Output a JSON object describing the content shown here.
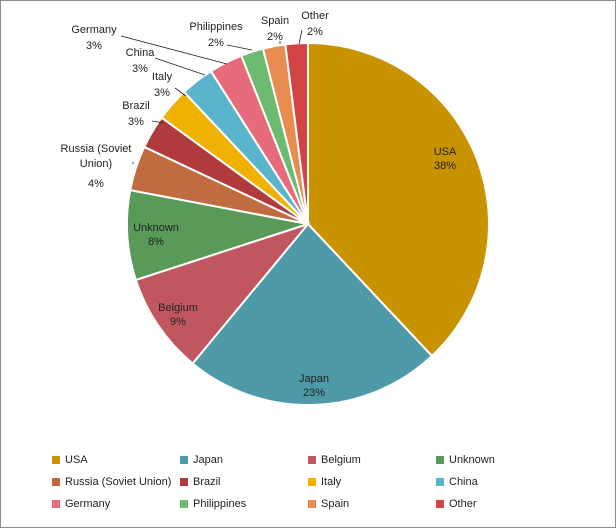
{
  "chart_data": {
    "type": "pie",
    "title": "",
    "legend_position": "bottom",
    "slices": [
      {
        "label": "USA",
        "value": 38,
        "percent_label": "38%",
        "color": "#c89200"
      },
      {
        "label": "Japan",
        "value": 23,
        "percent_label": "23%",
        "color": "#4e9aa9"
      },
      {
        "label": "Belgium",
        "value": 9,
        "percent_label": "9%",
        "color": "#c0575f"
      },
      {
        "label": "Unknown",
        "value": 8,
        "percent_label": "8%",
        "color": "#5a9a58"
      },
      {
        "label": "Russia (Soviet Union)",
        "value": 4,
        "percent_label": "4%",
        "color": "#c06b40"
      },
      {
        "label": "Brazil",
        "value": 3,
        "percent_label": "3%",
        "color": "#b03a3c"
      },
      {
        "label": "Italy",
        "value": 3,
        "percent_label": "3%",
        "color": "#efb200"
      },
      {
        "label": "China",
        "value": 3,
        "percent_label": "3%",
        "color": "#5ab4cc"
      },
      {
        "label": "Germany",
        "value": 3,
        "percent_label": "3%",
        "color": "#e66c7c"
      },
      {
        "label": "Philippines",
        "value": 2,
        "percent_label": "2%",
        "color": "#6dbb70"
      },
      {
        "label": "Spain",
        "value": 2,
        "percent_label": "2%",
        "color": "#e88c50"
      },
      {
        "label": "Other",
        "value": 2,
        "percent_label": "2%",
        "color": "#d24444"
      }
    ]
  }
}
